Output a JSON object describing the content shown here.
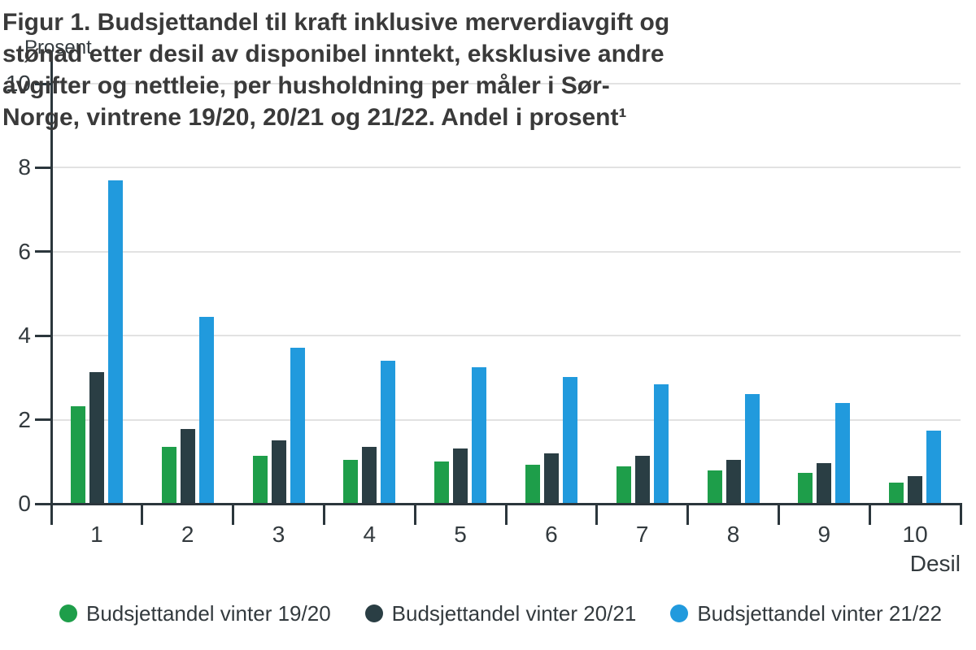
{
  "figure": {
    "title_lines": [
      "Figur 1. Budsjettandel til kraft inklusive merverdiavgift og",
      "stønad etter desil av disponibel inntekt, eksklusive andre",
      "avgifter og nettleie, per husholdning per måler i Sør-",
      "Norge, vintrene 19/20, 20/21 og 21/22. Andel i prosent¹"
    ]
  },
  "y_axis": {
    "label": "Prosent",
    "ticks": [
      0,
      2,
      4,
      6,
      8,
      10
    ]
  },
  "x_axis": {
    "label": "Desil",
    "categories": [
      "1",
      "2",
      "3",
      "4",
      "5",
      "6",
      "7",
      "8",
      "9",
      "10"
    ]
  },
  "colors": {
    "series_green": "#1e9e4a",
    "series_dark": "#2a3e44",
    "series_blue": "#219add",
    "gridline": "#e2e2e2",
    "axis": "#2b363c",
    "text": "#333a3e"
  },
  "chart_data": {
    "type": "bar",
    "title": "Figur 1. Budsjettandel til kraft inklusive merverdiavgift og stønad etter desil av disponibel inntekt, eksklusive andre avgifter og nettleie, per husholdning per måler i Sør-Norge, vintrene 19/20, 20/21 og 21/22. Andel i prosent¹",
    "xlabel": "Desil",
    "ylabel": "Prosent",
    "ylim": [
      0,
      10
    ],
    "grid": true,
    "legend_position": "bottom",
    "categories": [
      "1",
      "2",
      "3",
      "4",
      "5",
      "6",
      "7",
      "8",
      "9",
      "10"
    ],
    "series": [
      {
        "name": "Budsjettandel vinter 19/20",
        "color": "#1e9e4a",
        "values": [
          2.33,
          1.36,
          1.15,
          1.05,
          1.01,
          0.93,
          0.89,
          0.79,
          0.74,
          0.51
        ]
      },
      {
        "name": "Budsjettandel vinter 20/21",
        "color": "#2a3e44",
        "values": [
          3.13,
          1.78,
          1.5,
          1.36,
          1.31,
          1.2,
          1.15,
          1.04,
          0.96,
          0.66
        ]
      },
      {
        "name": "Budsjettandel vinter 21/22",
        "color": "#219add",
        "values": [
          7.7,
          4.44,
          3.71,
          3.4,
          3.24,
          3.01,
          2.85,
          2.62,
          2.39,
          1.74
        ]
      }
    ]
  }
}
